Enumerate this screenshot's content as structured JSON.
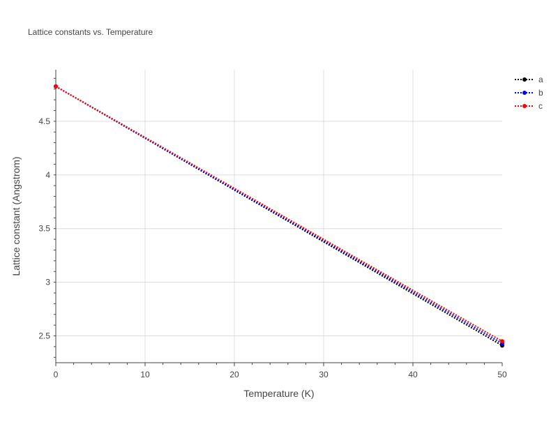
{
  "chart_data": {
    "type": "line",
    "title": "Lattice constants vs. Temperature",
    "xlabel": "Temperature (K)",
    "ylabel": "Lattice constant (Angstrom)",
    "xlim": [
      0,
      50
    ],
    "ylim": [
      2.25,
      4.98
    ],
    "xticks": [
      0,
      10,
      20,
      30,
      40,
      50
    ],
    "yticks": [
      2.5,
      3,
      3.5,
      4,
      4.5
    ],
    "ytick_labels": [
      "2.5",
      "3",
      "3.5",
      "4",
      "4.5"
    ],
    "grid": true,
    "legend_placement": "top-right",
    "series": [
      {
        "name": "a",
        "color": "#000000",
        "x": [
          0,
          50
        ],
        "y": [
          4.825,
          2.41
        ]
      },
      {
        "name": "b",
        "color": "#0000ff",
        "x": [
          0,
          50
        ],
        "y": [
          4.825,
          2.43
        ]
      },
      {
        "name": "c",
        "color": "#ff0000",
        "x": [
          0,
          50
        ],
        "y": [
          4.825,
          2.45
        ]
      }
    ]
  }
}
